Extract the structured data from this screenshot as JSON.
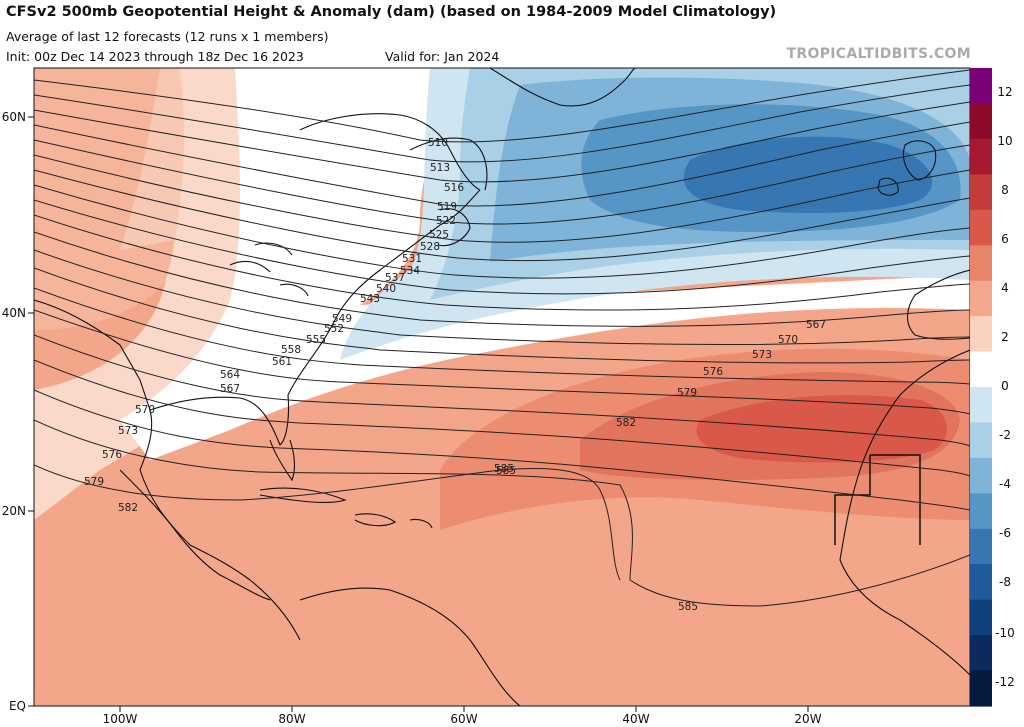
{
  "header": {
    "title": "CFSv2 500mb Geopotential Height & Anomaly (dam) (based on 1984-2009 Model Climatology)",
    "subtitle_1": "Average of last 12 forecasts (12 runs x 1 members)",
    "subtitle_2": "Init: 00z Dec 14 2023 through 18z Dec 16 2023",
    "valid_for": "Valid for: Jan 2024",
    "credit": "TROPICALTIDBITS.COM"
  },
  "axes": {
    "lat_labels": [
      "60N",
      "40N",
      "20N",
      "EQ"
    ],
    "lon_labels": [
      "100W",
      "80W",
      "60W",
      "40W",
      "20W"
    ]
  },
  "colorbar": {
    "labels": [
      "12",
      "10",
      "8",
      "6",
      "4",
      "2",
      "0",
      "-2",
      "-4",
      "-6",
      "-8",
      "-10",
      "-12"
    ],
    "colors": [
      "#7a0177",
      "#8e0a2b",
      "#a51a32",
      "#c43c39",
      "#d9584a",
      "#e8836c",
      "#f3a88d",
      "#fbd2bf",
      "#ffffff",
      "#cfe5f1",
      "#a9d0e7",
      "#7fb4d8",
      "#5596c6",
      "#3677b3",
      "#1f5a9c",
      "#10407e",
      "#0b2a5e",
      "#061a40"
    ]
  },
  "contour_labels": [
    "510",
    "513",
    "516",
    "519",
    "522",
    "525",
    "528",
    "531",
    "534",
    "537",
    "540",
    "543",
    "549",
    "552",
    "555",
    "558",
    "561",
    "564",
    "567",
    "570",
    "573",
    "576",
    "579",
    "582",
    "585",
    "567",
    "570",
    "573",
    "576",
    "579",
    "582",
    "585",
    "585"
  ],
  "colors": {
    "ocean_warm": "#f4a68a",
    "ocean_cold": "#4a8fc6",
    "coast": "#111111",
    "contour": "#222222"
  }
}
